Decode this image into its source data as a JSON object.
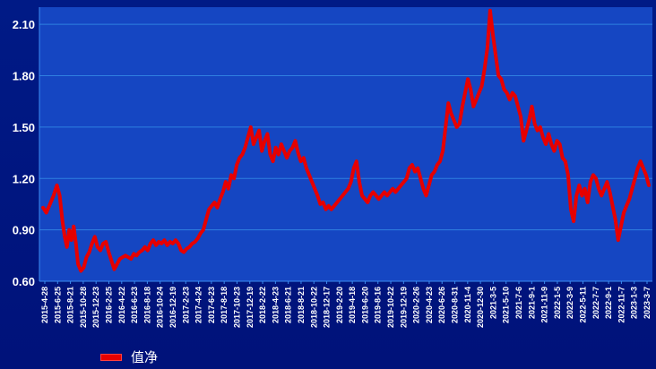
{
  "chart_data": {
    "type": "line",
    "title": "",
    "xlabel": "",
    "ylabel": "",
    "ylim": [
      0.6,
      2.2
    ],
    "yticks": [
      "0.60",
      "0.90",
      "1.20",
      "1.50",
      "1.80",
      "2.10"
    ],
    "x_tick_labels": [
      "2015-4-28",
      "2015-6-25",
      "2015-8-21",
      "2015-10-28",
      "2015-12-23",
      "2016-2-25",
      "2016-4-22",
      "2016-6-23",
      "2016-8-18",
      "2016-10-24",
      "2016-12-19",
      "2017-2-23",
      "2017-4-24",
      "2017-6-23",
      "2017-8-18",
      "2017-10-23",
      "2017-12-19",
      "2018-2-22",
      "2018-4-23",
      "2018-6-21",
      "2018-8-21",
      "2018-10-22",
      "2018-12-17",
      "2019-2-20",
      "2019-4-18",
      "2019-6-20",
      "2019-8-16",
      "2019-10-22",
      "2019-12-19",
      "2020-2-26",
      "2020-4-23",
      "2020-6-26",
      "2020-8-31",
      "2020-11-4",
      "2020-12-30",
      "2021-3-5",
      "2021-5-10",
      "2021-7-6",
      "2021-9-1",
      "2021-11-9",
      "2022-1-5",
      "2022-3-9",
      "2022-5-11",
      "2022-7-7",
      "2022-9-1",
      "2022-11-7",
      "2023-1-3",
      "2023-3-7"
    ],
    "grid": true,
    "legend": "bottom-left",
    "colors": {
      "line": "#e60000",
      "grid": "#2f7fe0",
      "axis_text": "#ffffff"
    },
    "series": [
      {
        "name": "值净",
        "points": [
          [
            0,
            1.03
          ],
          [
            1.2,
            1.0
          ],
          [
            2.5,
            1.05
          ],
          [
            3.8,
            1.1
          ],
          [
            5,
            1.16
          ],
          [
            6,
            1.1
          ],
          [
            7,
            0.95
          ],
          [
            7.8,
            0.86
          ],
          [
            8.6,
            0.8
          ],
          [
            9.4,
            0.9
          ],
          [
            10.2,
            0.84
          ],
          [
            11,
            0.92
          ],
          [
            11.8,
            0.82
          ],
          [
            12.6,
            0.7
          ],
          [
            13.6,
            0.66
          ],
          [
            14.6,
            0.68
          ],
          [
            15.6,
            0.74
          ],
          [
            16.6,
            0.77
          ],
          [
            17.6,
            0.82
          ],
          [
            18.6,
            0.86
          ],
          [
            19.6,
            0.8
          ],
          [
            20.6,
            0.78
          ],
          [
            21.6,
            0.82
          ],
          [
            22.6,
            0.83
          ],
          [
            23.6,
            0.77
          ],
          [
            24.6,
            0.72
          ],
          [
            25.6,
            0.67
          ],
          [
            26.6,
            0.7
          ],
          [
            27.6,
            0.73
          ],
          [
            28.6,
            0.74
          ],
          [
            29.6,
            0.75
          ],
          [
            30.6,
            0.74
          ],
          [
            31.6,
            0.73
          ],
          [
            32.6,
            0.76
          ],
          [
            33.6,
            0.75
          ],
          [
            34.6,
            0.77
          ],
          [
            35.6,
            0.78
          ],
          [
            36.6,
            0.8
          ],
          [
            37.6,
            0.78
          ],
          [
            38.6,
            0.82
          ],
          [
            39.6,
            0.84
          ],
          [
            40.6,
            0.81
          ],
          [
            41.6,
            0.83
          ],
          [
            42.6,
            0.82
          ],
          [
            43.6,
            0.84
          ],
          [
            44.6,
            0.81
          ],
          [
            45.6,
            0.83
          ],
          [
            46.6,
            0.82
          ],
          [
            47.6,
            0.84
          ],
          [
            48.6,
            0.82
          ],
          [
            49.6,
            0.78
          ],
          [
            50.6,
            0.77
          ],
          [
            51.6,
            0.79
          ],
          [
            52.6,
            0.8
          ],
          [
            53.6,
            0.82
          ],
          [
            54.6,
            0.83
          ],
          [
            55.6,
            0.85
          ],
          [
            56.6,
            0.88
          ],
          [
            57.6,
            0.9
          ],
          [
            58.6,
            0.96
          ],
          [
            59.6,
            1.02
          ],
          [
            60.6,
            1.04
          ],
          [
            61.6,
            1.06
          ],
          [
            62.6,
            1.03
          ],
          [
            63.6,
            1.08
          ],
          [
            64.6,
            1.12
          ],
          [
            65.6,
            1.18
          ],
          [
            66.6,
            1.14
          ],
          [
            67.6,
            1.22
          ],
          [
            68.6,
            1.2
          ],
          [
            69.6,
            1.28
          ],
          [
            70.6,
            1.32
          ],
          [
            71.6,
            1.34
          ],
          [
            72.6,
            1.38
          ],
          [
            73.6,
            1.44
          ],
          [
            74.6,
            1.5
          ],
          [
            75.6,
            1.4
          ],
          [
            76.6,
            1.44
          ],
          [
            77.6,
            1.48
          ],
          [
            78.6,
            1.36
          ],
          [
            79.6,
            1.42
          ],
          [
            80.6,
            1.46
          ],
          [
            81.6,
            1.34
          ],
          [
            82.6,
            1.3
          ],
          [
            83.6,
            1.38
          ],
          [
            84.6,
            1.34
          ],
          [
            85.6,
            1.4
          ],
          [
            86.6,
            1.36
          ],
          [
            87.6,
            1.32
          ],
          [
            88.6,
            1.36
          ],
          [
            89.6,
            1.38
          ],
          [
            90.6,
            1.42
          ],
          [
            91.6,
            1.35
          ],
          [
            92.6,
            1.3
          ],
          [
            93.6,
            1.32
          ],
          [
            94.6,
            1.26
          ],
          [
            95.6,
            1.22
          ],
          [
            96.6,
            1.18
          ],
          [
            97.6,
            1.14
          ],
          [
            98.6,
            1.1
          ],
          [
            99.6,
            1.05
          ],
          [
            100.6,
            1.06
          ],
          [
            101.6,
            1.02
          ],
          [
            102.6,
            1.04
          ],
          [
            103.6,
            1.02
          ],
          [
            104.6,
            1.04
          ],
          [
            105.6,
            1.06
          ],
          [
            106.6,
            1.08
          ],
          [
            107.6,
            1.1
          ],
          [
            108.6,
            1.12
          ],
          [
            109.6,
            1.14
          ],
          [
            110.6,
            1.18
          ],
          [
            111.6,
            1.26
          ],
          [
            112.6,
            1.3
          ],
          [
            113.6,
            1.18
          ],
          [
            114.6,
            1.1
          ],
          [
            115.6,
            1.08
          ],
          [
            116.6,
            1.06
          ],
          [
            117.6,
            1.1
          ],
          [
            118.6,
            1.12
          ],
          [
            119.6,
            1.1
          ],
          [
            120.6,
            1.08
          ],
          [
            121.6,
            1.1
          ],
          [
            122.6,
            1.12
          ],
          [
            123.6,
            1.1
          ],
          [
            124.6,
            1.12
          ],
          [
            125.6,
            1.14
          ],
          [
            126.6,
            1.12
          ],
          [
            127.6,
            1.14
          ],
          [
            128.6,
            1.16
          ],
          [
            129.6,
            1.18
          ],
          [
            130.6,
            1.2
          ],
          [
            131.6,
            1.26
          ],
          [
            132.6,
            1.28
          ],
          [
            133.6,
            1.24
          ],
          [
            134.6,
            1.26
          ],
          [
            135.6,
            1.2
          ],
          [
            136.6,
            1.14
          ],
          [
            137.6,
            1.1
          ],
          [
            138.6,
            1.16
          ],
          [
            139.6,
            1.22
          ],
          [
            140.6,
            1.24
          ],
          [
            141.6,
            1.28
          ],
          [
            142.6,
            1.3
          ],
          [
            143.6,
            1.36
          ],
          [
            144.6,
            1.5
          ],
          [
            145.6,
            1.64
          ],
          [
            146.6,
            1.58
          ],
          [
            147.6,
            1.54
          ],
          [
            148.6,
            1.5
          ],
          [
            149.6,
            1.52
          ],
          [
            150.6,
            1.62
          ],
          [
            151.6,
            1.7
          ],
          [
            152.6,
            1.78
          ],
          [
            153.6,
            1.72
          ],
          [
            154.6,
            1.62
          ],
          [
            155.6,
            1.66
          ],
          [
            156.6,
            1.7
          ],
          [
            157.6,
            1.74
          ],
          [
            158.6,
            1.84
          ],
          [
            159.6,
            1.96
          ],
          [
            160.6,
            2.18
          ],
          [
            161.6,
            2.04
          ],
          [
            162.6,
            1.92
          ],
          [
            163.6,
            1.8
          ],
          [
            164.6,
            1.78
          ],
          [
            165.6,
            1.72
          ],
          [
            166.6,
            1.7
          ],
          [
            167.6,
            1.66
          ],
          [
            168.6,
            1.7
          ],
          [
            169.6,
            1.68
          ],
          [
            170.6,
            1.62
          ],
          [
            171.6,
            1.56
          ],
          [
            172.6,
            1.42
          ],
          [
            173.6,
            1.48
          ],
          [
            174.6,
            1.54
          ],
          [
            175.6,
            1.62
          ],
          [
            176.6,
            1.52
          ],
          [
            177.6,
            1.48
          ],
          [
            178.6,
            1.5
          ],
          [
            179.6,
            1.44
          ],
          [
            180.6,
            1.4
          ],
          [
            181.6,
            1.46
          ],
          [
            182.6,
            1.4
          ],
          [
            183.6,
            1.36
          ],
          [
            184.6,
            1.42
          ],
          [
            185.6,
            1.4
          ],
          [
            186.6,
            1.32
          ],
          [
            187.6,
            1.3
          ],
          [
            188.6,
            1.22
          ],
          [
            189.6,
            1.02
          ],
          [
            190.6,
            0.95
          ],
          [
            191.6,
            1.1
          ],
          [
            192.6,
            1.16
          ],
          [
            193.6,
            1.1
          ],
          [
            194.6,
            1.14
          ],
          [
            195.6,
            1.06
          ],
          [
            196.6,
            1.18
          ],
          [
            197.6,
            1.22
          ],
          [
            198.6,
            1.2
          ],
          [
            199.6,
            1.14
          ],
          [
            200.6,
            1.1
          ],
          [
            201.6,
            1.14
          ],
          [
            202.6,
            1.18
          ],
          [
            203.6,
            1.12
          ],
          [
            204.6,
            1.04
          ],
          [
            205.6,
            0.96
          ],
          [
            206.6,
            0.84
          ],
          [
            207.6,
            0.92
          ],
          [
            208.6,
            1.0
          ],
          [
            209.6,
            1.04
          ],
          [
            210.6,
            1.08
          ],
          [
            211.6,
            1.14
          ],
          [
            212.6,
            1.2
          ],
          [
            213.6,
            1.26
          ],
          [
            214.6,
            1.3
          ],
          [
            215.6,
            1.26
          ],
          [
            216.6,
            1.22
          ],
          [
            217.6,
            1.16
          ]
        ]
      }
    ]
  }
}
